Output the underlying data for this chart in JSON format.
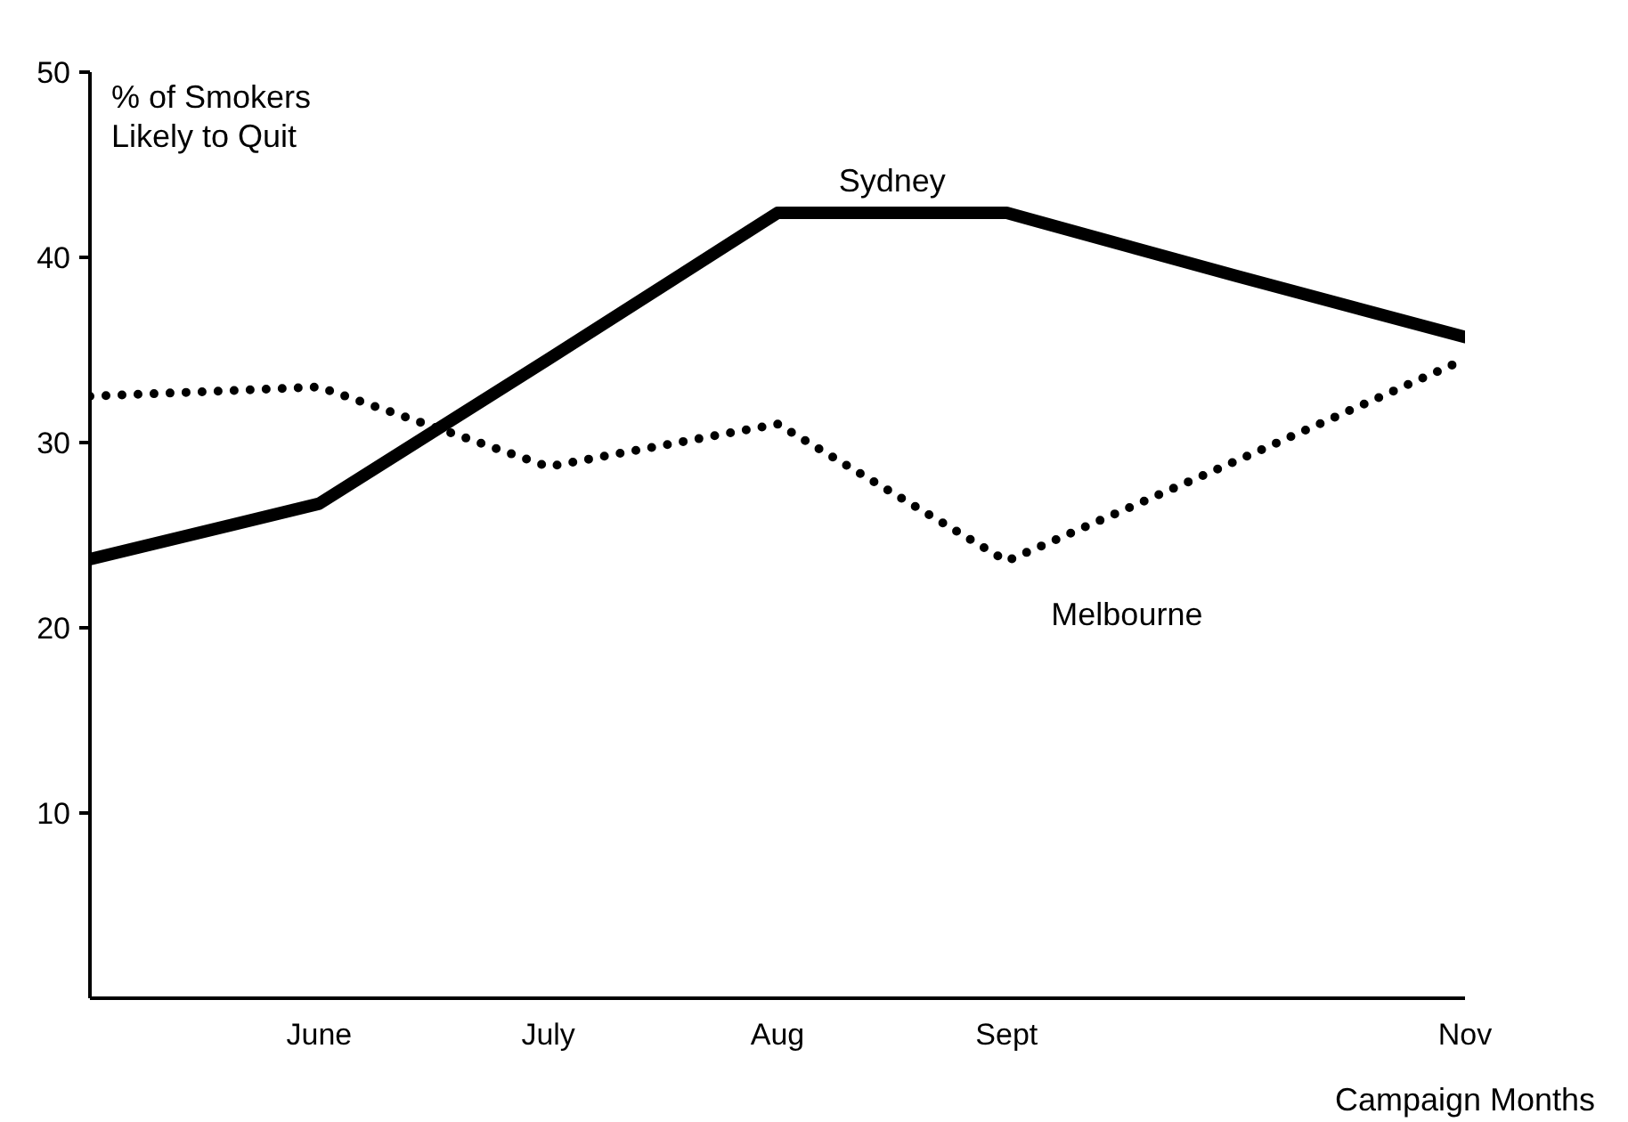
{
  "chart_data": {
    "type": "line",
    "ylabel": "% of Smokers\nLikely to Quit",
    "xlabel": "Campaign Months",
    "categories": [
      null,
      "June",
      "July",
      "Aug",
      "Sept",
      null,
      "Nov"
    ],
    "ylim": [
      0,
      50
    ],
    "yticks": [
      10,
      20,
      30,
      40,
      50
    ],
    "grid": false,
    "marker": "none",
    "series": [
      {
        "name": "Sydney",
        "color": "#000000",
        "line_style": "solid",
        "values": [
          23.7,
          26.7,
          34.5,
          42.4,
          42.4,
          39.0,
          35.7
        ]
      },
      {
        "name": "Melbourne",
        "color": "#000000",
        "line_style": "dotted",
        "values": [
          32.5,
          33.0,
          28.7,
          31.0,
          23.6,
          29.0,
          34.5
        ]
      }
    ]
  }
}
